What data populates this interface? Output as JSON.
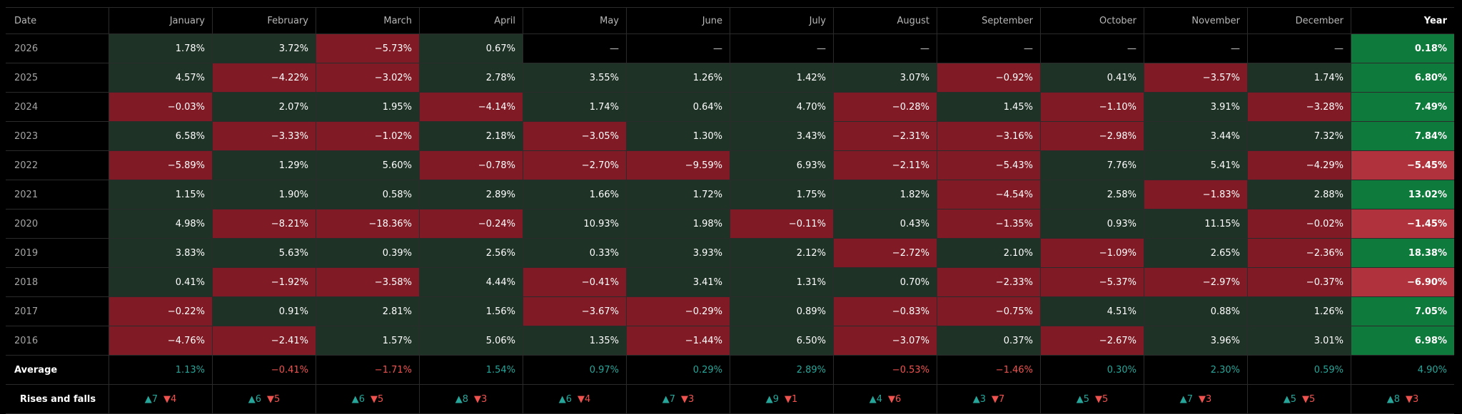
{
  "header": {
    "date_label": "Date",
    "months": [
      "January",
      "February",
      "March",
      "April",
      "May",
      "June",
      "July",
      "August",
      "September",
      "October",
      "November",
      "December"
    ],
    "year_label": "Year"
  },
  "rows": [
    {
      "year": "2026",
      "months": [
        "1.78%",
        "3.72%",
        "−5.73%",
        "0.67%",
        "—",
        "—",
        "—",
        "—",
        "—",
        "—",
        "—",
        "—"
      ],
      "signs": [
        "pos",
        "pos",
        "neg",
        "pos",
        "empty",
        "empty",
        "empty",
        "empty",
        "empty",
        "empty",
        "empty",
        "empty"
      ],
      "total": "0.18%",
      "total_sign": "pos"
    },
    {
      "year": "2025",
      "months": [
        "4.57%",
        "−4.22%",
        "−3.02%",
        "2.78%",
        "3.55%",
        "1.26%",
        "1.42%",
        "3.07%",
        "−0.92%",
        "0.41%",
        "−3.57%",
        "1.74%"
      ],
      "signs": [
        "pos",
        "neg",
        "neg",
        "pos",
        "pos",
        "pos",
        "pos",
        "pos",
        "neg",
        "pos",
        "neg",
        "pos"
      ],
      "total": "6.80%",
      "total_sign": "pos"
    },
    {
      "year": "2024",
      "months": [
        "−0.03%",
        "2.07%",
        "1.95%",
        "−4.14%",
        "1.74%",
        "0.64%",
        "4.70%",
        "−0.28%",
        "1.45%",
        "−1.10%",
        "3.91%",
        "−3.28%"
      ],
      "signs": [
        "neg",
        "pos",
        "pos",
        "neg",
        "pos",
        "pos",
        "pos",
        "neg",
        "pos",
        "neg",
        "pos",
        "neg"
      ],
      "total": "7.49%",
      "total_sign": "pos"
    },
    {
      "year": "2023",
      "months": [
        "6.58%",
        "−3.33%",
        "−1.02%",
        "2.18%",
        "−3.05%",
        "1.30%",
        "3.43%",
        "−2.31%",
        "−3.16%",
        "−2.98%",
        "3.44%",
        "7.32%"
      ],
      "signs": [
        "pos",
        "neg",
        "neg",
        "pos",
        "neg",
        "pos",
        "pos",
        "neg",
        "neg",
        "neg",
        "pos",
        "pos"
      ],
      "total": "7.84%",
      "total_sign": "pos"
    },
    {
      "year": "2022",
      "months": [
        "−5.89%",
        "1.29%",
        "5.60%",
        "−0.78%",
        "−2.70%",
        "−9.59%",
        "6.93%",
        "−2.11%",
        "−5.43%",
        "7.76%",
        "5.41%",
        "−4.29%"
      ],
      "signs": [
        "neg",
        "pos",
        "pos",
        "neg",
        "neg",
        "neg",
        "pos",
        "neg",
        "neg",
        "pos",
        "pos",
        "neg"
      ],
      "total": "−5.45%",
      "total_sign": "neg"
    },
    {
      "year": "2021",
      "months": [
        "1.15%",
        "1.90%",
        "0.58%",
        "2.89%",
        "1.66%",
        "1.72%",
        "1.75%",
        "1.82%",
        "−4.54%",
        "2.58%",
        "−1.83%",
        "2.88%"
      ],
      "signs": [
        "pos",
        "pos",
        "pos",
        "pos",
        "pos",
        "pos",
        "pos",
        "pos",
        "neg",
        "pos",
        "neg",
        "pos"
      ],
      "total": "13.02%",
      "total_sign": "pos"
    },
    {
      "year": "2020",
      "months": [
        "4.98%",
        "−8.21%",
        "−18.36%",
        "−0.24%",
        "10.93%",
        "1.98%",
        "−0.11%",
        "0.43%",
        "−1.35%",
        "0.93%",
        "11.15%",
        "−0.02%"
      ],
      "signs": [
        "pos",
        "neg",
        "neg",
        "neg",
        "pos",
        "pos",
        "neg",
        "pos",
        "neg",
        "pos",
        "pos",
        "neg"
      ],
      "total": "−1.45%",
      "total_sign": "neg"
    },
    {
      "year": "2019",
      "months": [
        "3.83%",
        "5.63%",
        "0.39%",
        "2.56%",
        "0.33%",
        "3.93%",
        "2.12%",
        "−2.72%",
        "2.10%",
        "−1.09%",
        "2.65%",
        "−2.36%"
      ],
      "signs": [
        "pos",
        "pos",
        "pos",
        "pos",
        "pos",
        "pos",
        "pos",
        "neg",
        "pos",
        "neg",
        "pos",
        "neg"
      ],
      "total": "18.38%",
      "total_sign": "pos"
    },
    {
      "year": "2018",
      "months": [
        "0.41%",
        "−1.92%",
        "−3.58%",
        "4.44%",
        "−0.41%",
        "3.41%",
        "1.31%",
        "0.70%",
        "−2.33%",
        "−5.37%",
        "−2.97%",
        "−0.37%"
      ],
      "signs": [
        "pos",
        "neg",
        "neg",
        "pos",
        "neg",
        "pos",
        "pos",
        "pos",
        "neg",
        "neg",
        "neg",
        "neg"
      ],
      "total": "−6.90%",
      "total_sign": "neg"
    },
    {
      "year": "2017",
      "months": [
        "−0.22%",
        "0.91%",
        "2.81%",
        "1.56%",
        "−3.67%",
        "−0.29%",
        "0.89%",
        "−0.83%",
        "−0.75%",
        "4.51%",
        "0.88%",
        "1.26%"
      ],
      "signs": [
        "neg",
        "pos",
        "pos",
        "pos",
        "neg",
        "neg",
        "pos",
        "neg",
        "neg",
        "pos",
        "pos",
        "pos"
      ],
      "total": "7.05%",
      "total_sign": "pos"
    },
    {
      "year": "2016",
      "months": [
        "−4.76%",
        "−2.41%",
        "1.57%",
        "5.06%",
        "1.35%",
        "−1.44%",
        "6.50%",
        "−3.07%",
        "0.37%",
        "−2.67%",
        "3.96%",
        "3.01%"
      ],
      "signs": [
        "neg",
        "neg",
        "pos",
        "pos",
        "pos",
        "neg",
        "pos",
        "neg",
        "pos",
        "neg",
        "pos",
        "pos"
      ],
      "total": "6.98%",
      "total_sign": "pos"
    }
  ],
  "average": {
    "label": "Average",
    "months": [
      "1.13%",
      "−0.41%",
      "−1.71%",
      "1.54%",
      "0.97%",
      "0.29%",
      "2.89%",
      "−0.53%",
      "−1.46%",
      "0.30%",
      "2.30%",
      "0.59%"
    ],
    "signs": [
      "up",
      "down",
      "down",
      "up",
      "up",
      "up",
      "up",
      "down",
      "down",
      "up",
      "up",
      "up"
    ],
    "year": "4.90%"
  },
  "rises_falls": {
    "label": "Rises and falls",
    "months": [
      {
        "rises": "▲7",
        "falls": "▼4"
      },
      {
        "rises": "▲6",
        "falls": "▼5"
      },
      {
        "rises": "▲6",
        "falls": "▼5"
      },
      {
        "rises": "▲8",
        "falls": "▼3"
      },
      {
        "rises": "▲6",
        "falls": "▼4"
      },
      {
        "rises": "▲7",
        "falls": "▼3"
      },
      {
        "rises": "▲9",
        "falls": "▼1"
      },
      {
        "rises": "▲4",
        "falls": "▼6"
      },
      {
        "rises": "▲3",
        "falls": "▼7"
      },
      {
        "rises": "▲5",
        "falls": "▼5"
      },
      {
        "rises": "▲7",
        "falls": "▼3"
      },
      {
        "rises": "▲5",
        "falls": "▼5"
      }
    ],
    "year": {
      "rises": "▲8",
      "falls": "▼3"
    }
  },
  "colors": {
    "positive_cell": "#1e3226",
    "negative_cell": "#801a24",
    "year_positive": "#0e7a3c",
    "year_negative": "#b0323c",
    "up_text": "#26a69a",
    "down_text": "#ef5350"
  }
}
